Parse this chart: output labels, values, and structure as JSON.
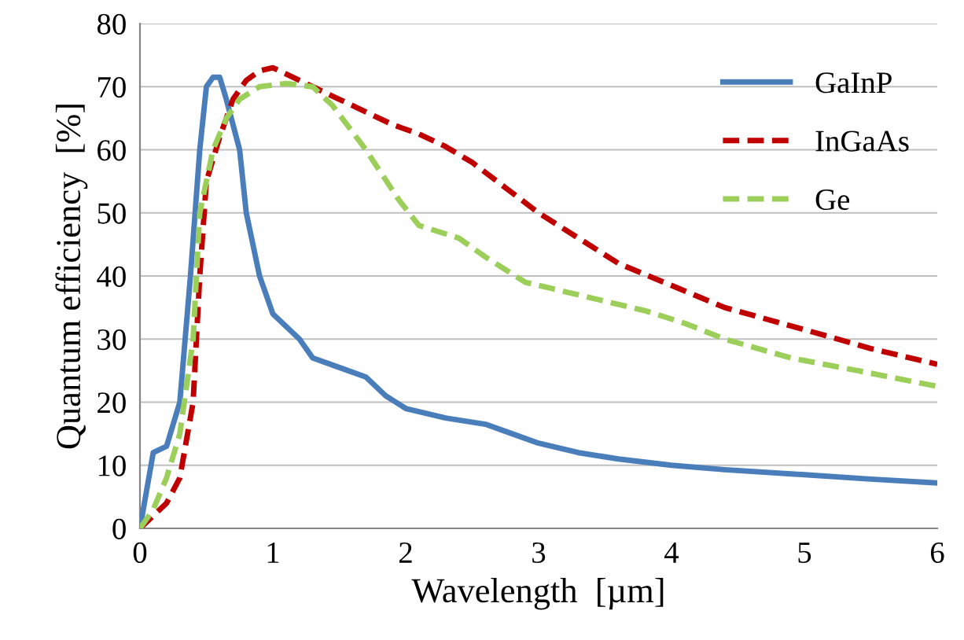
{
  "chart_data": {
    "type": "line",
    "xlabel": "Wavelength  [µm]",
    "ylabel": "Quantum efficiency  [%]",
    "xlim": [
      0,
      6
    ],
    "xticks": [
      0,
      1,
      2,
      3,
      4,
      5,
      6
    ],
    "ylim": [
      0,
      80
    ],
    "yticks": [
      0,
      10,
      20,
      30,
      40,
      50,
      60,
      70,
      80
    ],
    "grid": "y",
    "legend": "top right",
    "marker": "none",
    "series": [
      {
        "name": "GaInP",
        "color": "#4a7ebb",
        "line_style": "solid",
        "x": [
          0,
          0.1,
          0.2,
          0.3,
          0.38,
          0.45,
          0.5,
          0.55,
          0.6,
          0.65,
          0.75,
          0.8,
          0.9,
          1.0,
          1.1,
          1.2,
          1.3,
          1.5,
          1.7,
          1.85,
          2.0,
          2.3,
          2.6,
          2.8,
          3.0,
          3.3,
          3.6,
          4.0,
          4.4,
          5.0,
          5.5,
          6.0
        ],
        "values": [
          0,
          12,
          13,
          20,
          40,
          60,
          70,
          71.5,
          71.5,
          68,
          60,
          50,
          40,
          34,
          32,
          30,
          27,
          25.5,
          24,
          21,
          19,
          17.5,
          16.5,
          15,
          13.5,
          12,
          11,
          10,
          9.3,
          8.5,
          7.8,
          7.2
        ]
      },
      {
        "name": "InGaAs",
        "color": "#c00000",
        "line_style": "dashed",
        "x": [
          0,
          0.1,
          0.2,
          0.3,
          0.4,
          0.45,
          0.5,
          0.6,
          0.7,
          0.8,
          0.9,
          1.0,
          1.1,
          1.3,
          1.5,
          1.7,
          1.9,
          2.1,
          2.3,
          2.5,
          2.75,
          3.0,
          3.3,
          3.6,
          4.0,
          4.4,
          5.0,
          5.5,
          6.0
        ],
        "values": [
          0,
          2,
          4,
          8,
          20,
          40,
          55,
          62,
          68,
          71,
          72.5,
          73,
          72,
          70,
          68,
          66,
          64,
          62.5,
          60.5,
          58,
          54,
          50,
          46,
          42,
          38.5,
          35,
          31.5,
          28.5,
          26
        ]
      },
      {
        "name": "Ge",
        "color": "#9bcf5a",
        "line_style": "dashed",
        "x": [
          0,
          0.1,
          0.2,
          0.3,
          0.4,
          0.45,
          0.55,
          0.65,
          0.75,
          0.9,
          1.1,
          1.3,
          1.45,
          1.7,
          1.95,
          2.1,
          2.4,
          2.6,
          2.9,
          3.2,
          3.5,
          3.8,
          4.1,
          4.4,
          4.9,
          5.4,
          6.0
        ],
        "values": [
          0,
          3,
          8,
          15,
          30,
          50,
          60,
          65,
          68,
          70,
          70.5,
          70,
          67,
          60,
          52,
          48,
          46,
          43,
          39,
          37.5,
          36,
          34.5,
          32.5,
          30,
          27,
          25,
          22.5
        ]
      }
    ]
  }
}
